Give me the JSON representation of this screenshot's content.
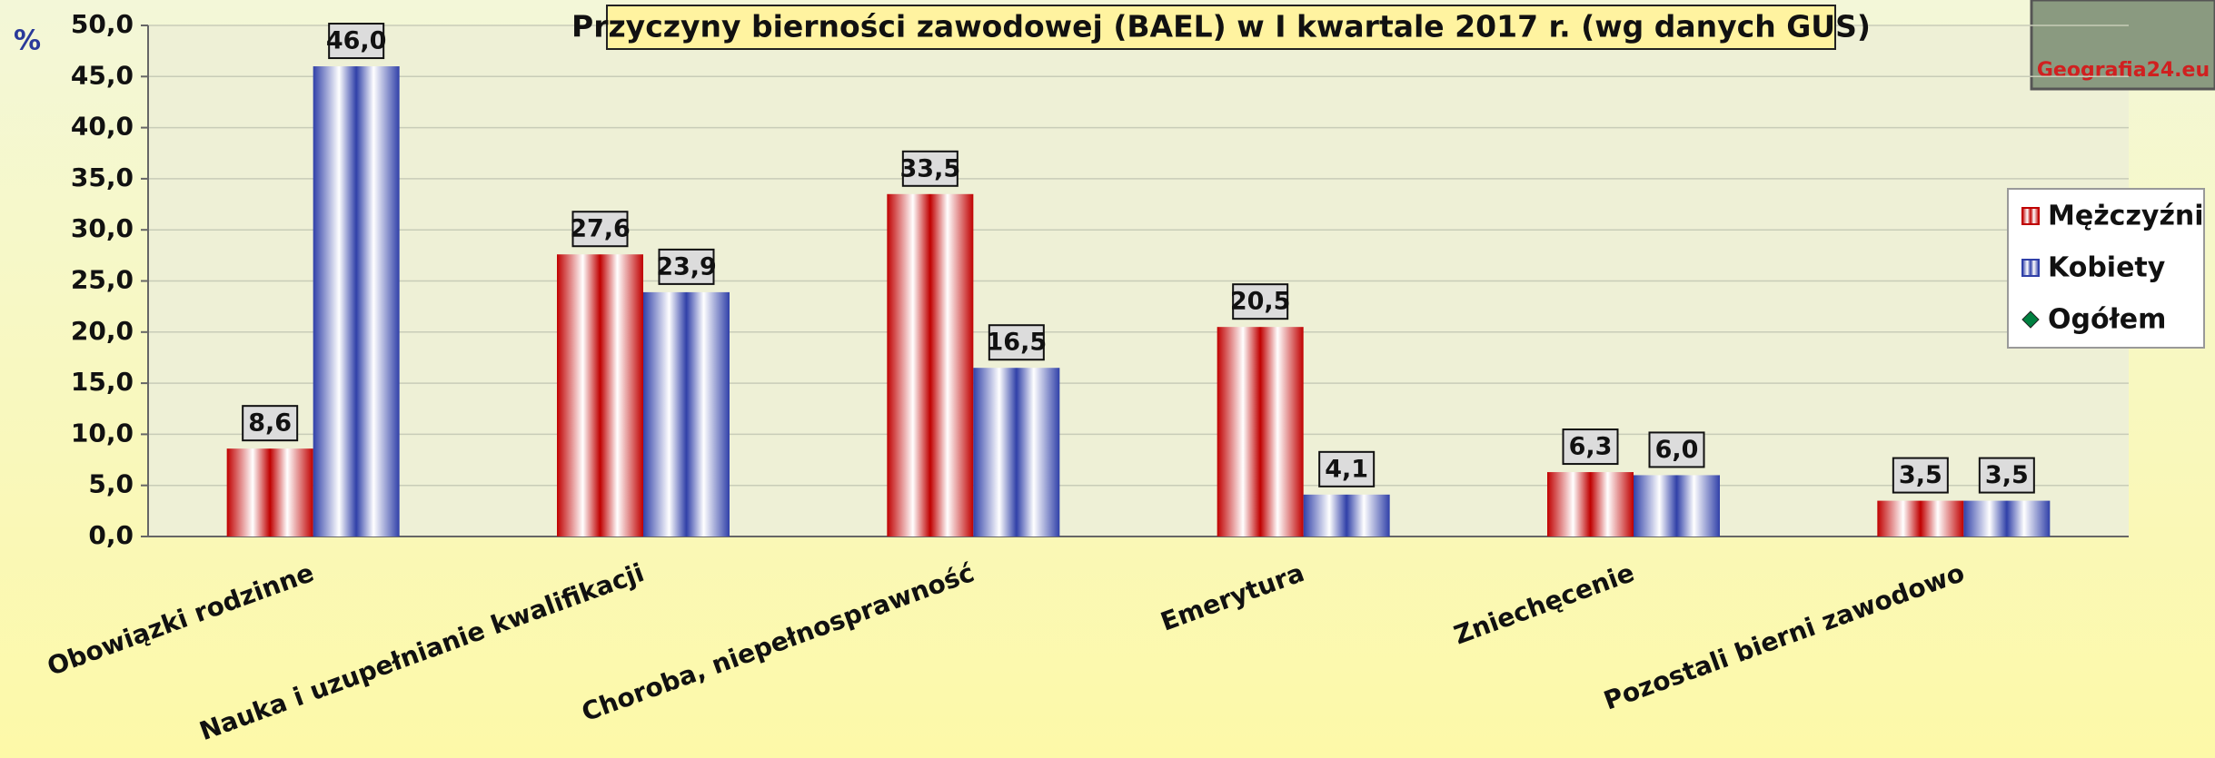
{
  "chart_data": {
    "type": "bar",
    "title": "Przyczyny bierności zawodowej (BAEL) w I kwartale 2017 r.  (wg danych GUS)",
    "y_label": "%",
    "categories": [
      "Obowiązki rodzinne",
      "Nauka i uzupełnianie kwalifikacji",
      "Choroba, niepełnosprawność",
      "Emerytura",
      "Zniechęcenie",
      "Pozostali bierni zawodowo"
    ],
    "series": [
      {
        "name": "Mężczyźni",
        "color": "#c00000",
        "values": [
          8.6,
          27.6,
          33.5,
          20.5,
          6.3,
          3.5
        ],
        "value_labels": [
          "8,6",
          "27,6",
          "33,5",
          "20,5",
          "6,3",
          "3,5"
        ]
      },
      {
        "name": "Kobiety",
        "color": "#3040a8",
        "values": [
          46.0,
          23.9,
          16.5,
          4.1,
          6.0,
          3.5
        ],
        "value_labels": [
          "46,0",
          "23,9",
          "16,5",
          "4,1",
          "6,0",
          "3,5"
        ]
      },
      {
        "name": "Ogółem",
        "color": "#008040",
        "marker": "diamond",
        "values": [
          null,
          null,
          null,
          null,
          null,
          null
        ]
      }
    ],
    "ylim": [
      0,
      50
    ],
    "yticks": [
      {
        "value": 0,
        "label": "0,0"
      },
      {
        "value": 5,
        "label": "5,0"
      },
      {
        "value": 10,
        "label": "10,0"
      },
      {
        "value": 15,
        "label": "15,0"
      },
      {
        "value": 20,
        "label": "20,0"
      },
      {
        "value": 25,
        "label": "25,0"
      },
      {
        "value": 30,
        "label": "30,0"
      },
      {
        "value": 35,
        "label": "35,0"
      },
      {
        "value": 40,
        "label": "40,0"
      },
      {
        "value": 45,
        "label": "45,0"
      },
      {
        "value": 50,
        "label": "50,0"
      }
    ],
    "grid": true,
    "legend": "right"
  },
  "logo": "Geografia24.eu"
}
